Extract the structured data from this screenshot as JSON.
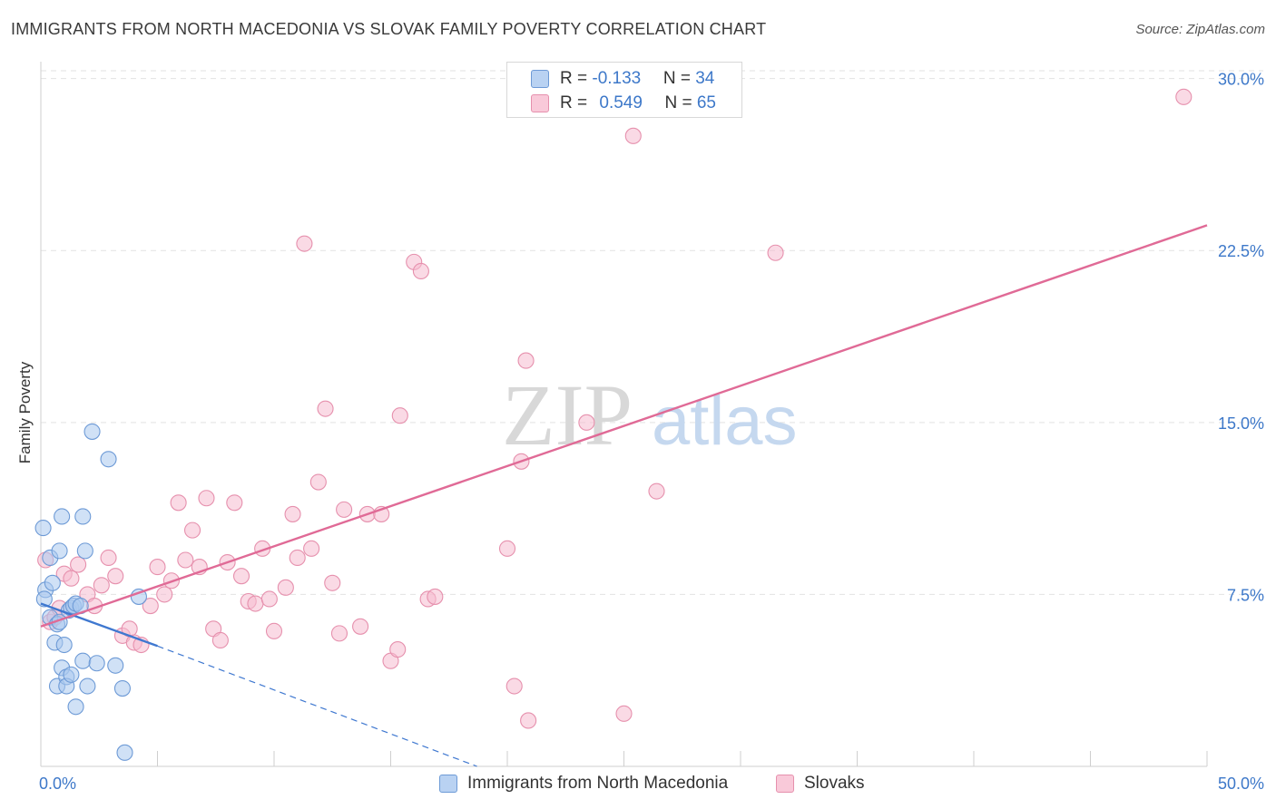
{
  "header": {
    "title": "IMMIGRANTS FROM NORTH MACEDONIA VS SLOVAK FAMILY POVERTY CORRELATION CHART",
    "source": "Source: ZipAtlas.com"
  },
  "watermark": {
    "zip": "ZIP",
    "atlas": "atlas"
  },
  "colors": {
    "blue_fill": "#a9c8ee",
    "blue_stroke": "#6d9ad6",
    "blue_line": "#3f78d0",
    "pink_fill": "#f6bcd0",
    "pink_stroke": "#e690ad",
    "pink_line": "#e06a96",
    "grid": "#e2e2e2",
    "tick_text": "#3d78c9"
  },
  "legend_top": {
    "rows": [
      {
        "r_label": "R = ",
        "r_value": "-0.133",
        "n_label": "N = ",
        "n_value": "34"
      },
      {
        "r_label": "R = ",
        "r_value": "0.549",
        "n_label": "N = ",
        "n_value": "65"
      }
    ]
  },
  "legend_bottom": {
    "items": [
      {
        "label": "Immigrants from North Macedonia"
      },
      {
        "label": "Slovaks"
      }
    ]
  },
  "chart_data": {
    "type": "scatter",
    "title": "IMMIGRANTS FROM NORTH MACEDONIA VS SLOVAK FAMILY POVERTY CORRELATION CHART",
    "xlabel": "",
    "ylabel": "Family Poverty",
    "xlim": [
      0,
      50
    ],
    "ylim": [
      0,
      30.5
    ],
    "x_tick_labels": [
      "0.0%",
      "50.0%"
    ],
    "y_ticks": [
      7.5,
      15.0,
      22.5,
      30.0
    ],
    "y_tick_labels": [
      "7.5%",
      "15.0%",
      "22.5%",
      "30.0%"
    ],
    "grid": true,
    "series": [
      {
        "name": "Immigrants from North Macedonia",
        "color": "blue",
        "r": -0.133,
        "n": 34,
        "trend": {
          "x_solid": [
            0,
            5
          ],
          "y_solid": [
            7.1,
            5.25
          ],
          "x_dashed": [
            5,
            18.7
          ],
          "y_dashed": [
            5.25,
            0
          ]
        },
        "points": [
          [
            0.1,
            10.4
          ],
          [
            0.2,
            7.7
          ],
          [
            0.4,
            9.1
          ],
          [
            0.4,
            6.5
          ],
          [
            0.5,
            8.0
          ],
          [
            0.6,
            5.4
          ],
          [
            0.7,
            6.2
          ],
          [
            0.7,
            3.5
          ],
          [
            0.8,
            6.3
          ],
          [
            0.8,
            9.4
          ],
          [
            0.9,
            4.3
          ],
          [
            0.9,
            10.9
          ],
          [
            1.0,
            5.3
          ],
          [
            1.1,
            3.9
          ],
          [
            1.1,
            3.5
          ],
          [
            1.2,
            6.8
          ],
          [
            1.3,
            4.0
          ],
          [
            1.3,
            6.9
          ],
          [
            1.4,
            7.0
          ],
          [
            1.5,
            7.1
          ],
          [
            1.5,
            2.6
          ],
          [
            1.7,
            7.0
          ],
          [
            1.8,
            4.6
          ],
          [
            1.8,
            10.9
          ],
          [
            1.9,
            9.4
          ],
          [
            2.0,
            3.5
          ],
          [
            2.2,
            14.6
          ],
          [
            2.4,
            4.5
          ],
          [
            2.9,
            13.4
          ],
          [
            3.2,
            4.4
          ],
          [
            3.5,
            3.4
          ],
          [
            3.6,
            0.6
          ],
          [
            4.2,
            7.4
          ],
          [
            0.15,
            7.3
          ]
        ]
      },
      {
        "name": "Slovaks",
        "color": "pink",
        "r": 0.549,
        "n": 65,
        "trend": {
          "x": [
            0,
            50
          ],
          "y": [
            6.1,
            23.6
          ]
        },
        "points": [
          [
            0.2,
            9.0
          ],
          [
            0.4,
            6.3
          ],
          [
            0.6,
            6.5
          ],
          [
            0.8,
            6.9
          ],
          [
            1.0,
            8.4
          ],
          [
            1.3,
            8.2
          ],
          [
            1.6,
            8.8
          ],
          [
            2.0,
            7.5
          ],
          [
            2.3,
            7.0
          ],
          [
            2.6,
            7.9
          ],
          [
            2.9,
            9.1
          ],
          [
            3.2,
            8.3
          ],
          [
            3.5,
            5.7
          ],
          [
            3.8,
            6.0
          ],
          [
            4.0,
            5.4
          ],
          [
            4.3,
            5.3
          ],
          [
            4.7,
            7.0
          ],
          [
            5.0,
            8.7
          ],
          [
            5.3,
            7.5
          ],
          [
            5.6,
            8.1
          ],
          [
            5.9,
            11.5
          ],
          [
            6.2,
            9.0
          ],
          [
            6.5,
            10.3
          ],
          [
            6.8,
            8.7
          ],
          [
            7.1,
            11.7
          ],
          [
            7.4,
            6.0
          ],
          [
            7.7,
            5.5
          ],
          [
            8.0,
            8.9
          ],
          [
            8.3,
            11.5
          ],
          [
            8.6,
            8.3
          ],
          [
            8.9,
            7.2
          ],
          [
            9.2,
            7.1
          ],
          [
            9.5,
            9.5
          ],
          [
            9.8,
            7.3
          ],
          [
            10.0,
            5.9
          ],
          [
            10.5,
            7.8
          ],
          [
            10.8,
            11.0
          ],
          [
            11.0,
            9.1
          ],
          [
            11.3,
            22.8
          ],
          [
            11.6,
            9.5
          ],
          [
            11.9,
            12.4
          ],
          [
            12.2,
            15.6
          ],
          [
            12.5,
            8.0
          ],
          [
            12.8,
            5.8
          ],
          [
            13.0,
            11.2
          ],
          [
            13.7,
            6.1
          ],
          [
            14.0,
            11.0
          ],
          [
            14.6,
            11.0
          ],
          [
            15.0,
            4.6
          ],
          [
            15.3,
            5.1
          ],
          [
            15.4,
            15.3
          ],
          [
            16.0,
            22.0
          ],
          [
            16.3,
            21.6
          ],
          [
            16.6,
            7.3
          ],
          [
            16.9,
            7.4
          ],
          [
            20.0,
            9.5
          ],
          [
            20.3,
            3.5
          ],
          [
            20.6,
            13.3
          ],
          [
            20.8,
            17.7
          ],
          [
            20.9,
            2.0
          ],
          [
            23.4,
            15.0
          ],
          [
            25.0,
            2.3
          ],
          [
            25.4,
            27.5
          ],
          [
            26.4,
            12.0
          ],
          [
            31.5,
            22.4
          ],
          [
            49.0,
            29.2
          ]
        ]
      }
    ]
  }
}
